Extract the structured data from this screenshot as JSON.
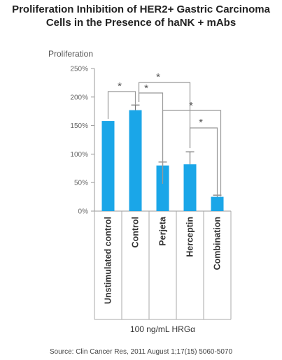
{
  "title_line1": "Proliferation Inhibition of HER2+ Gastric Carcinoma",
  "title_line2": "Cells in the Presence of haNK + mAbs",
  "source": "Source: Clin Cancer Res, 2011 August 1;17(15) 5060-5070",
  "chart_data": {
    "type": "bar",
    "title": "Proliferation Inhibition of HER2+ Gastric Carcinoma Cells in the Presence of haNK + mAbs",
    "ylabel": "Proliferation",
    "xlabel": "100 ng/mL HRGα",
    "ylim": [
      0,
      250
    ],
    "yticks": [
      "0%",
      "50%",
      "100%",
      "150%",
      "200%",
      "250%"
    ],
    "categories": [
      "Unstimulated control",
      "Control",
      "Perjeta",
      "Herceptin",
      "Combination"
    ],
    "values": [
      158,
      177,
      80,
      82,
      25
    ],
    "errors": [
      0,
      9,
      6,
      22,
      3
    ],
    "bar_color": "#1aa6e8",
    "significance": [
      {
        "from": 0,
        "to": 1,
        "label": "*"
      },
      {
        "from": 1,
        "to": 2,
        "label": "*"
      },
      {
        "from": 1,
        "to": 3,
        "label": "*"
      },
      {
        "from": 2,
        "to": 4,
        "label": "*"
      },
      {
        "from": 3,
        "to": 4,
        "label": "*"
      }
    ]
  }
}
